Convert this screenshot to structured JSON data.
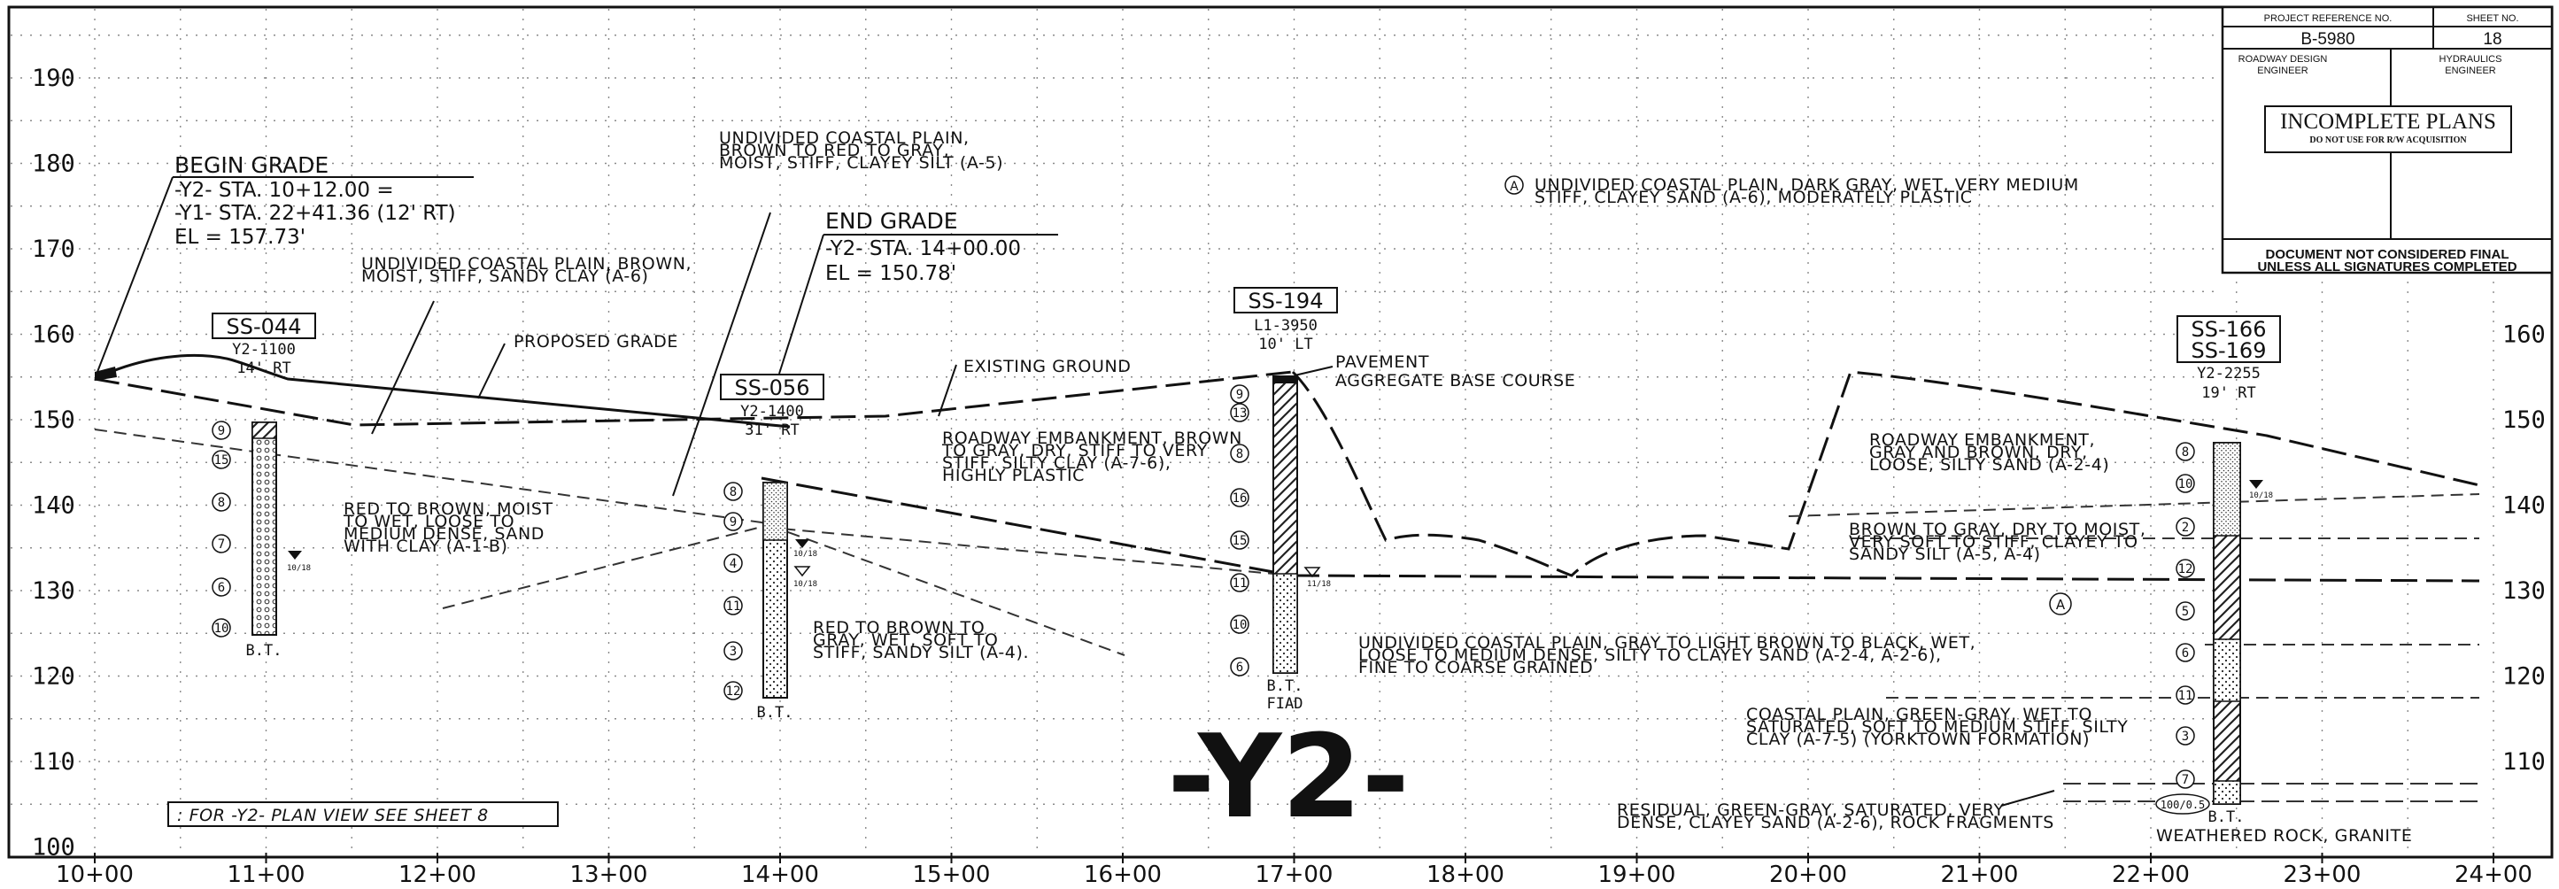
{
  "sheet": {
    "title": "-Y2-",
    "plan_view_note": ": FOR -Y2- PLAN VIEW SEE SHEET 8"
  },
  "title_block": {
    "project_ref_label": "PROJECT REFERENCE NO.",
    "sheet_no_label": "SHEET NO.",
    "project_ref": "B-5980",
    "sheet_no": "18",
    "roadway_label_1": "ROADWAY DESIGN",
    "roadway_label_2": "ENGINEER",
    "hydraulics_label_1": "HYDRAULICS",
    "hydraulics_label_2": "ENGINEER",
    "incomplete_title": "INCOMPLETE PLANS",
    "incomplete_sub": "DO NOT USE FOR R/W ACQUISITION",
    "doc_not_final_1": "DOCUMENT NOT CONSIDERED FINAL",
    "doc_not_final_2": "UNLESS ALL SIGNATURES COMPLETED"
  },
  "axes": {
    "elevation_ticks": [
      "190",
      "180",
      "170",
      "160",
      "150",
      "140",
      "130",
      "120",
      "110",
      "100"
    ],
    "station_ticks": [
      "10+00",
      "11+00",
      "12+00",
      "13+00",
      "14+00",
      "15+00",
      "16+00",
      "17+00",
      "18+00",
      "19+00",
      "20+00",
      "21+00",
      "22+00",
      "23+00",
      "24+00"
    ]
  },
  "grade": {
    "begin_title": "BEGIN GRADE",
    "begin_line1": "-Y2- STA. 10+12.00  =",
    "begin_line2": "-Y1- STA. 22+41.36 (12' RT)",
    "begin_line3": "EL  =   157.73'",
    "end_title": "END GRADE",
    "end_line1": "-Y2- STA. 14+00.00",
    "end_line2": "EL  =   150.78'",
    "proposed_label": "PROPOSED GRADE",
    "existing_label": "EXISTING GROUND"
  },
  "borings": [
    {
      "id": "SS-044",
      "ref1": "Y2-1100",
      "ref2": "14' RT",
      "bottom": "B.T.",
      "values": [
        "9",
        "15",
        "8",
        "7",
        "6",
        "10"
      ]
    },
    {
      "id": "SS-056",
      "ref1": "Y2-1400",
      "ref2": "31' RT",
      "bottom": "B.T.",
      "values": [
        "8",
        "9",
        "4",
        "11",
        "3",
        "12"
      ]
    },
    {
      "id": "SS-194",
      "ref1": "L1-3950",
      "ref2": "10' LT",
      "bottom1": "B.T.",
      "bottom2": "FIAD",
      "values": [
        "9",
        "13",
        "8",
        "16",
        "15",
        "11",
        "10",
        "6"
      ],
      "pavement1": "PAVEMENT",
      "pavement2": "AGGREGATE BASE COURSE"
    },
    {
      "id": "SS-166",
      "id2": "SS-169",
      "ref1": "Y2-2255",
      "ref2": "19' RT",
      "bottom": "B.T.",
      "values": [
        "8",
        "10",
        "2",
        "12",
        "5",
        "6",
        "11",
        "3",
        "7"
      ],
      "refusal": "100/0.5"
    }
  ],
  "water_marks": [
    "10/18",
    "10/18",
    "10/18",
    "11/18",
    "10/18"
  ],
  "legend_symbol": "A",
  "soil_notes": {
    "n1": [
      "UNDIVIDED COASTAL PLAIN, BROWN,",
      "MOIST, STIFF, SANDY CLAY (A-6)"
    ],
    "n2": [
      "UNDIVIDED COASTAL PLAIN,",
      "BROWN TO RED TO GRAY,",
      "MOIST, STIFF, CLAYEY SILT (A-5)"
    ],
    "n3": [
      "RED TO BROWN, MOIST",
      "TO WET, LOOSE TO",
      "MEDIUM DENSE, SAND",
      "WITH CLAY (A-1-B)"
    ],
    "n4": [
      "RED TO BROWN TO",
      "GRAY, WET, SOFT TO",
      "STIFF, SANDY SILT (A-4)."
    ],
    "n5": [
      "ROADWAY EMBANKMENT, BROWN",
      "TO GRAY, DRY, STIFF TO VERY",
      "STIFF, SILTY CLAY (A-7-6),",
      "HIGHLY PLASTIC"
    ],
    "n6": [
      "UNDIVIDED COASTAL PLAIN, DARK GRAY, WET, VERY MEDIUM",
      "STIFF, CLAYEY SAND (A-6), MODERATELY PLASTIC"
    ],
    "n7": [
      "ROADWAY EMBANKMENT,",
      "GRAY AND BROWN, DRY,",
      "LOOSE, SILTY SAND (A-2-4)"
    ],
    "n8": [
      "BROWN TO GRAY, DRY TO MOIST,",
      "VERY SOFT TO STIFF, CLAYEY TO",
      "SANDY SILT (A-5, A-4)"
    ],
    "n9": [
      "UNDIVIDED COASTAL PLAIN, GRAY TO LIGHT BROWN TO BLACK, WET,",
      "LOOSE TO MEDIUM DENSE, SILTY TO CLAYEY SAND (A-2-4, A-2-6),",
      "FINE TO COARSE GRAINED"
    ],
    "n10": [
      "COASTAL PLAIN, GREEN-GRAY, WET TO",
      "SATURATED, SOFT TO MEDIUM STIFF, SILTY",
      "CLAY (A-7-5) (YORKTOWN FORMATION)"
    ],
    "n11": [
      "RESIDUAL, GREEN-GRAY, SATURATED, VERY",
      "DENSE, CLAYEY SAND (A-2-6), ROCK FRAGMENTS"
    ],
    "n12": [
      "WEATHERED ROCK, GRANITE"
    ]
  },
  "colors": {
    "ink": "#111111",
    "paper": "#ffffff",
    "grid": "#8a8a8a"
  }
}
